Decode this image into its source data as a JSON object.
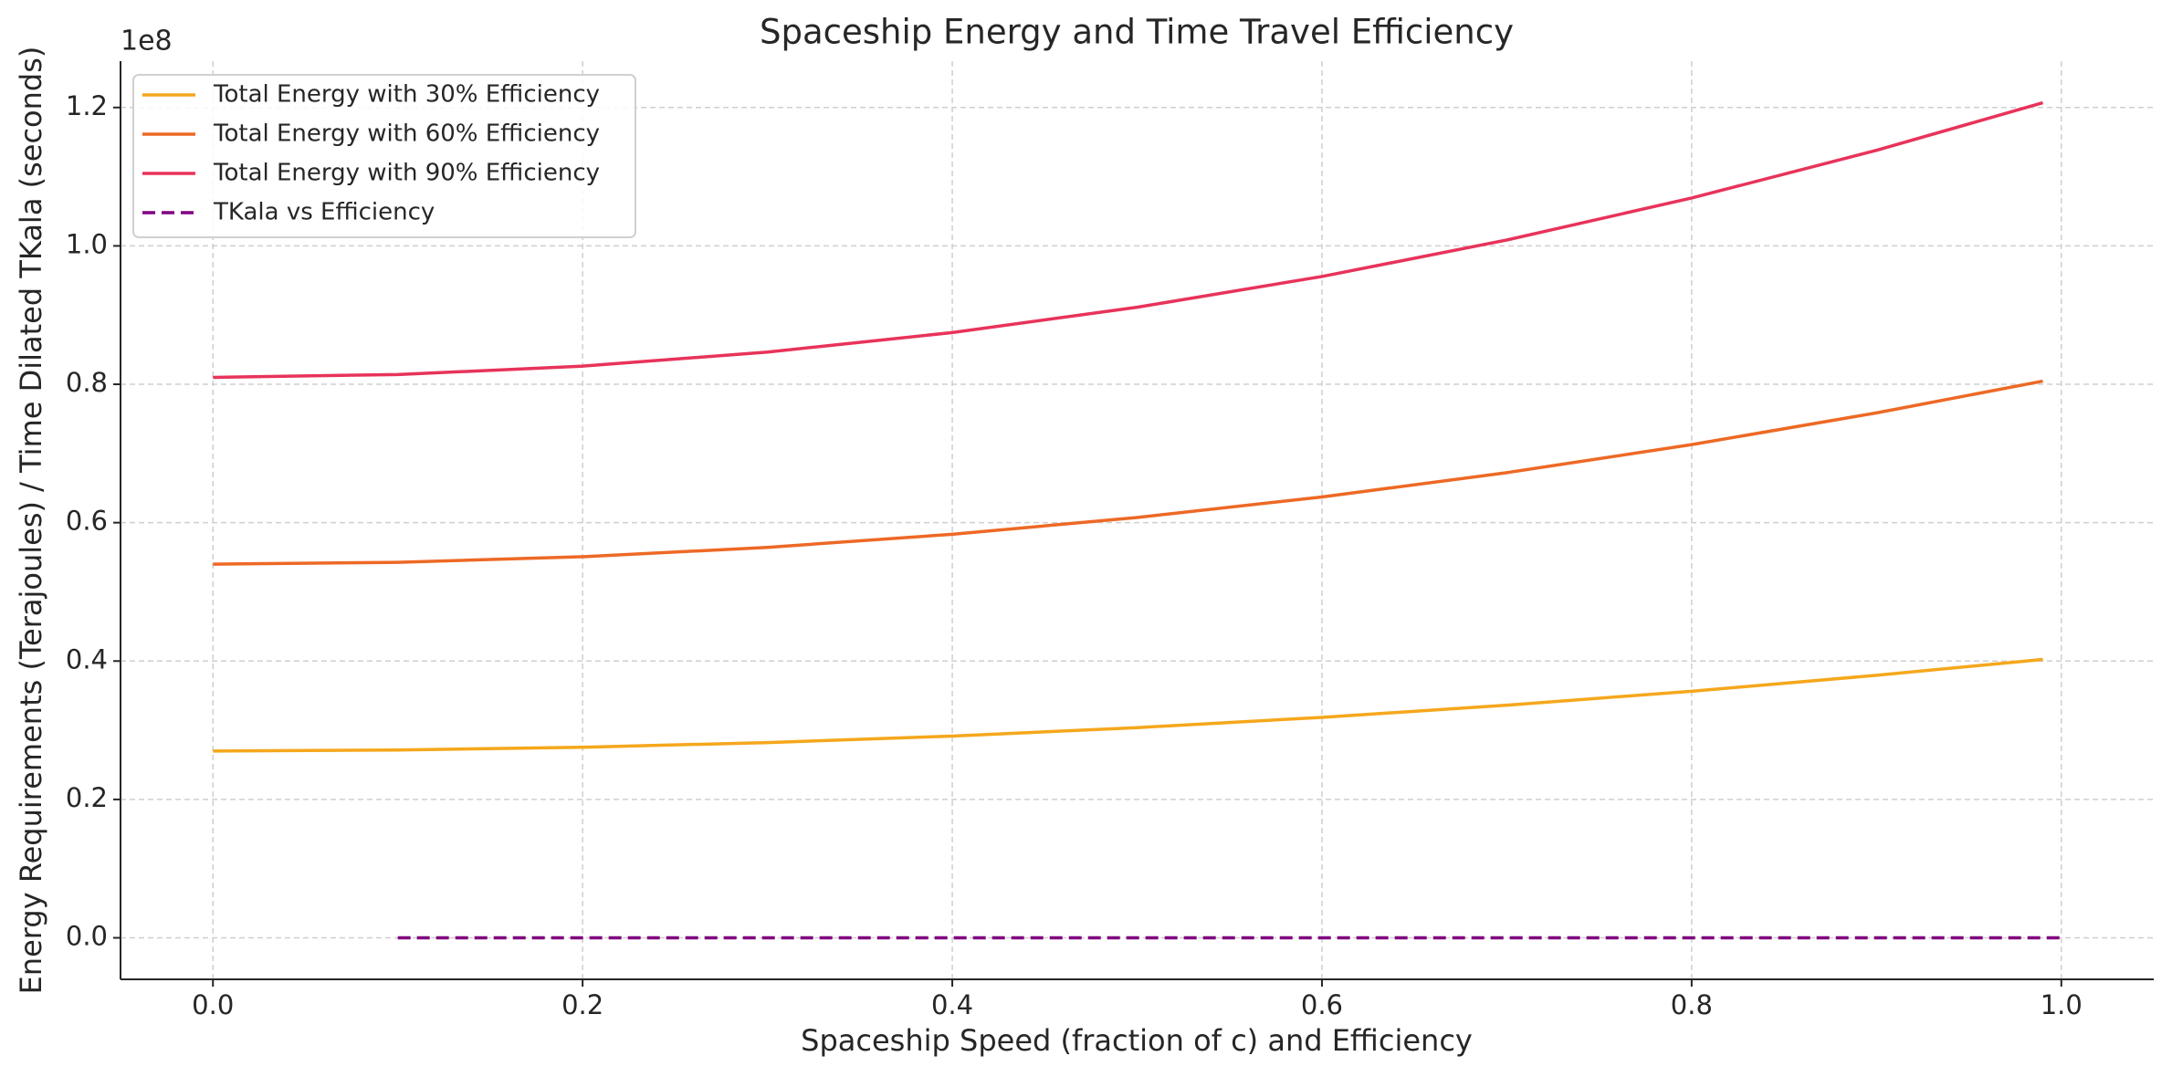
{
  "chart_data": {
    "type": "line",
    "title": "Spaceship Energy and Time Travel Efficiency",
    "xlabel": "Spaceship Speed (fraction of c) and Efficiency",
    "ylabel": "Energy Requirements (Terajoules) / Time Dilated TKala (seconds)",
    "y_offset_label": "1e8",
    "xlim": [
      -0.05,
      1.05
    ],
    "ylim": [
      -0.06,
      1.267
    ],
    "xticks": [
      {
        "value": 0,
        "label": "0.0"
      },
      0.2,
      0.4,
      0.6,
      0.8,
      {
        "value": 1,
        "label": "1.0"
      }
    ],
    "yticks": [
      {
        "value": 0,
        "label": "0.0"
      },
      0.2,
      0.4,
      0.6,
      0.8,
      {
        "value": 1,
        "label": "1.0"
      },
      1.2
    ],
    "grid": true,
    "legend": "upper left",
    "series": [
      {
        "name": "Total Energy with 30% Efficiency",
        "color": "#f5a71c",
        "style": "solid",
        "x": [
          0,
          0.1,
          0.2,
          0.3,
          0.4,
          0.5,
          0.6,
          0.7,
          0.8,
          0.9,
          0.99
        ],
        "values": [
          0.27,
          0.2714,
          0.2754,
          0.2822,
          0.2916,
          0.3038,
          0.3186,
          0.3362,
          0.3564,
          0.3794,
          0.4023
        ]
      },
      {
        "name": "Total Energy with 60% Efficiency",
        "color": "#ed6925",
        "style": "solid",
        "x": [
          0,
          0.1,
          0.2,
          0.3,
          0.4,
          0.5,
          0.6,
          0.7,
          0.8,
          0.9,
          0.99
        ],
        "values": [
          0.54,
          0.5427,
          0.5508,
          0.5643,
          0.5832,
          0.6075,
          0.6372,
          0.6723,
          0.7128,
          0.7587,
          0.8046
        ]
      },
      {
        "name": "Total Energy with 90% Efficiency",
        "color": "#e8335a",
        "style": "solid",
        "x": [
          0,
          0.1,
          0.2,
          0.3,
          0.4,
          0.5,
          0.6,
          0.7,
          0.8,
          0.9,
          0.99
        ],
        "values": [
          0.81,
          0.8141,
          0.8262,
          0.8465,
          0.8748,
          0.9113,
          0.9558,
          1.0085,
          1.0692,
          1.1381,
          1.2069
        ]
      },
      {
        "name": "TKala vs Efficiency",
        "color": "#800080",
        "style": "dashed",
        "x": [
          0.1,
          1.0
        ],
        "values": [
          0,
          0
        ]
      }
    ]
  }
}
